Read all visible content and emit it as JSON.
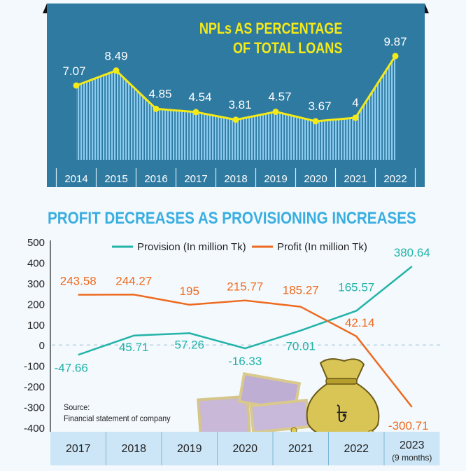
{
  "chart_data": [
    {
      "type": "area",
      "title": "NPLs AS PERCENTAGE OF TOTAL LOANS",
      "title_lines": [
        "NPLs AS PERCENTAGE",
        "OF TOTAL LOANS"
      ],
      "categories": [
        "2014",
        "2015",
        "2016",
        "2017",
        "2018",
        "2019",
        "2020",
        "2021",
        "2022"
      ],
      "values": [
        7.07,
        8.49,
        4.85,
        4.54,
        3.81,
        4.57,
        3.67,
        4,
        9.87
      ],
      "labels": [
        "7.07",
        "8.49",
        "4.85",
        "4.54",
        "3.81",
        "4.57",
        "3.67",
        "4",
        "9.87"
      ],
      "xlabel": "",
      "ylabel": "",
      "ylim": [
        0,
        11
      ],
      "grid": false,
      "colors": {
        "panel": "#2f7aa1",
        "line": "#f4ea18",
        "fill": "#8ccbf0",
        "text": "#ffffff"
      }
    },
    {
      "type": "line",
      "title": "PROFIT DECREASES AS PROVISIONING INCREASES",
      "categories": [
        "2017",
        "2018",
        "2019",
        "2020",
        "2021",
        "2022",
        "2023"
      ],
      "category_sublabels": [
        "",
        "",
        "",
        "",
        "",
        "",
        "(9 months)"
      ],
      "series": [
        {
          "name": "Provision (In million Tk)",
          "color": "#23b3a8",
          "values": [
            -47.66,
            45.71,
            57.26,
            -16.33,
            70.01,
            165.57,
            380.64
          ],
          "labels": [
            "-47.66",
            "45.71",
            "57.26",
            "-16.33",
            "70.01",
            "165.57",
            "380.64"
          ]
        },
        {
          "name": "Profit (In million Tk)",
          "color": "#ee6a1e",
          "values": [
            243.58,
            244.27,
            195,
            215.77,
            185.27,
            42.14,
            -300.71
          ],
          "labels": [
            "243.58",
            "244.27",
            "195",
            "215.77",
            "185.27",
            "42.14",
            "-300.71"
          ]
        }
      ],
      "yticks": [
        "500",
        "400",
        "300",
        "200",
        "100",
        "0",
        "-100",
        "-200",
        "-300",
        "-400"
      ],
      "ylim": [
        -400,
        500
      ],
      "zero_line": "dashed",
      "legend": "top-center",
      "xlabel": "",
      "ylabel": ""
    }
  ],
  "source": {
    "label": "Source:",
    "text": "Financial statement of company"
  },
  "illustration": {
    "description": "money-bag-with-taka-sign-and-banknotes"
  }
}
